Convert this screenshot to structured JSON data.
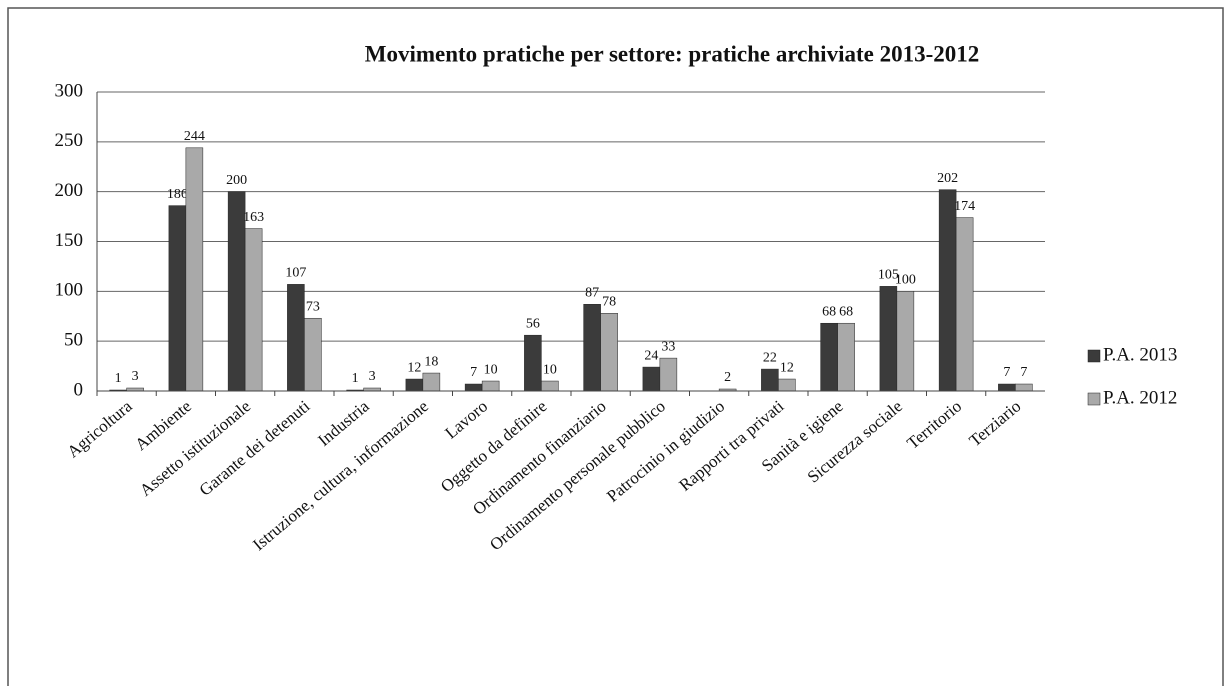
{
  "chart_data": {
    "type": "bar",
    "title": "Movimento pratiche per settore: pratiche archiviate 2013-2012",
    "categories": [
      "Agricoltura",
      "Ambiente",
      "Assetto istituzionale",
      "Garante dei detenuti",
      "Industria",
      "Istruzione, cultura, informazione",
      "Lavoro",
      "Oggetto da definire",
      "Ordinamento finanziario",
      "Ordinamento personale pubblico",
      "Patrocinio in giudizio",
      "Rapporti tra privati",
      "Sanità e igiene",
      "Sicurezza sociale",
      "Territorio",
      "Terziario"
    ],
    "series": [
      {
        "name": "P.A. 2013",
        "color": "#3b3b3b",
        "values": [
          1,
          186,
          200,
          107,
          1,
          12,
          7,
          56,
          87,
          24,
          null,
          22,
          68,
          105,
          202,
          7
        ]
      },
      {
        "name": "P.A. 2012",
        "color": "#a9a9a9",
        "values": [
          3,
          244,
          163,
          73,
          3,
          18,
          10,
          10,
          78,
          33,
          2,
          12,
          68,
          100,
          174,
          7
        ]
      }
    ],
    "ylim": [
      0,
      300
    ],
    "yticks": [
      0,
      50,
      100,
      150,
      200,
      250,
      300
    ],
    "grid": true,
    "legend": "right"
  }
}
